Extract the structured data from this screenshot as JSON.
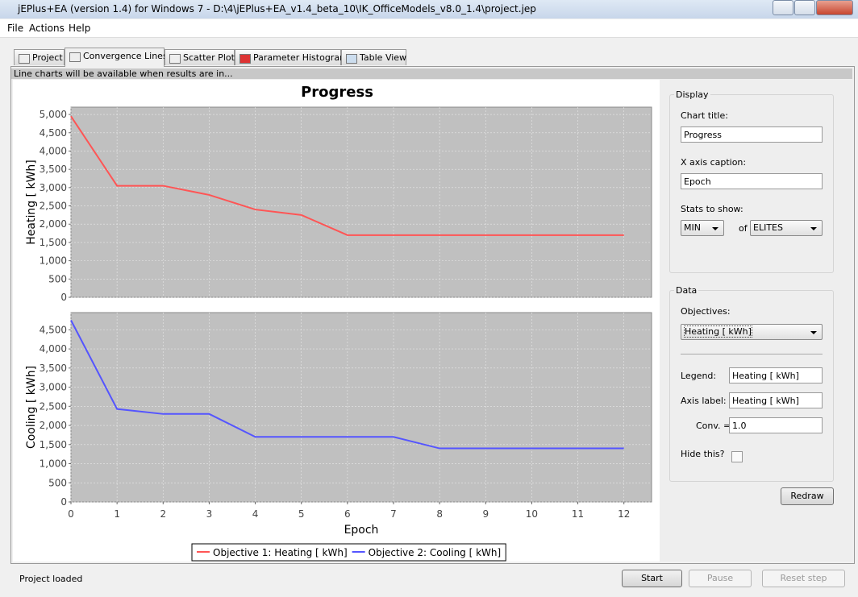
{
  "window": {
    "title": "jEPlus+EA (version 1.4) for Windows 7 - D:\\4\\jEPlus+EA_v1.4_beta_10\\IK_OfficeModels_v8.0_1.4\\project.jep"
  },
  "menu": [
    "File",
    "Actions",
    "Help"
  ],
  "tabs": [
    "Project",
    "Convergence Lines",
    "Scatter Plot",
    "Parameter Histogram",
    "Table View"
  ],
  "info": "Line charts will be available when results are in...",
  "chart_data": [
    {
      "type": "line",
      "title": "Progress",
      "ylabel": "Heating [ kWh]",
      "x": [
        0,
        1,
        2,
        3,
        4,
        5,
        6,
        7,
        8,
        9,
        10,
        11,
        12
      ],
      "series": [
        {
          "name": "Objective 1: Heating [ kWh]",
          "color": "#ff5555",
          "values": [
            4950,
            3050,
            3050,
            2800,
            2400,
            2250,
            1700,
            1700,
            1700,
            1700,
            1700,
            1700,
            1700
          ]
        }
      ],
      "xlim": [
        0,
        12.6
      ],
      "ylim": [
        0,
        5200
      ],
      "yticks": [
        0,
        500,
        {
          "value": 1000,
          "label": "1,000"
        },
        {
          "value": 1500,
          "label": "1,500"
        },
        {
          "value": 2000,
          "label": "2,000"
        },
        {
          "value": 2500,
          "label": "2,500"
        },
        {
          "value": 3000,
          "label": "3,000"
        },
        {
          "value": 3500,
          "label": "3,500"
        },
        {
          "value": 4000,
          "label": "4,000"
        },
        {
          "value": 4500,
          "label": "4,500"
        },
        {
          "value": 5000,
          "label": "5,000"
        }
      ],
      "grid": true
    },
    {
      "type": "line",
      "xlabel": "Epoch",
      "ylabel": "Cooling [ kWh]",
      "x": [
        0,
        1,
        2,
        3,
        4,
        5,
        6,
        7,
        8,
        9,
        10,
        11,
        12
      ],
      "series": [
        {
          "name": "Objective 2: Cooling [ kWh]",
          "color": "#5555ff",
          "values": [
            4750,
            2430,
            2300,
            2300,
            1700,
            1700,
            1700,
            1700,
            1400,
            1400,
            1400,
            1400,
            1400
          ]
        }
      ],
      "xlim": [
        0,
        12.6
      ],
      "xticks": [
        0,
        1,
        2,
        3,
        4,
        5,
        6,
        7,
        8,
        9,
        10,
        11,
        12
      ],
      "ylim": [
        0,
        4950
      ],
      "yticks": [
        0,
        500,
        {
          "value": 1000,
          "label": "1,000"
        },
        {
          "value": 1500,
          "label": "1,500"
        },
        {
          "value": 2000,
          "label": "2,000"
        },
        {
          "value": 2500,
          "label": "2,500"
        },
        {
          "value": 3000,
          "label": "3,000"
        },
        {
          "value": 3500,
          "label": "3,500"
        },
        {
          "value": 4000,
          "label": "4,000"
        },
        {
          "value": 4500,
          "label": "4,500"
        }
      ],
      "grid": true
    }
  ],
  "display": {
    "heading": "Display",
    "chart_title_label": "Chart title:",
    "chart_title": "Progress",
    "x_caption_label": "X axis caption:",
    "x_caption": "Epoch",
    "stats_label": "Stats to show:",
    "stat": "MIN",
    "of": "of",
    "population": "ELITES"
  },
  "data_panel": {
    "heading": "Data",
    "objectives_label": "Objectives:",
    "objective": "Heating [ kWh]",
    "legend_label": "Legend:",
    "legend": "Heating [ kWh]",
    "axis_label_label": "Axis label:",
    "axis_label": "Heating [ kWh]",
    "conv_label": "Conv. =",
    "conv": "1.0",
    "hide_label": "Hide this?"
  },
  "redraw": "Redraw",
  "status": "Project loaded",
  "buttons": [
    "Start",
    "Pause",
    "Reset step"
  ]
}
